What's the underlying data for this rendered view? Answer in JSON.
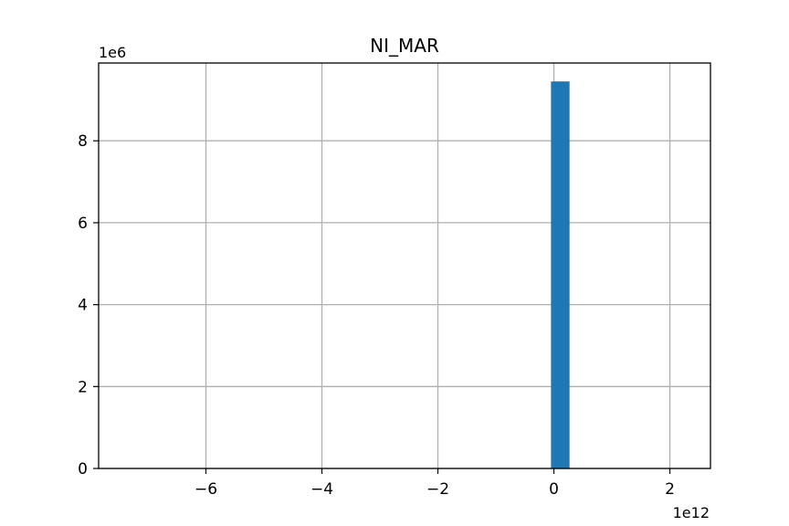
{
  "chart_data": {
    "type": "bar",
    "title": "NI_MAR",
    "xlabel": "",
    "ylabel": "",
    "x_offset_label": "1e12",
    "y_offset_label": "1e6",
    "xlim": [
      -7.85,
      2.7
    ],
    "ylim": [
      0,
      9.9
    ],
    "grid": true,
    "x_ticks": [
      {
        "value": -6,
        "label": "−6"
      },
      {
        "value": -4,
        "label": "−4"
      },
      {
        "value": -2,
        "label": "−2"
      },
      {
        "value": 0,
        "label": "0"
      },
      {
        "value": 2,
        "label": "2"
      }
    ],
    "y_ticks": [
      {
        "value": 0,
        "label": "0"
      },
      {
        "value": 2,
        "label": "2"
      },
      {
        "value": 4,
        "label": "4"
      },
      {
        "value": 6,
        "label": "6"
      },
      {
        "value": 8,
        "label": "8"
      }
    ],
    "bars": [
      {
        "x0": -0.05,
        "x1": 0.0,
        "value": 9.45
      },
      {
        "x0": 0.0,
        "x1": 0.27,
        "value": 9.45
      }
    ],
    "colors": {
      "bar": "#1f77b4",
      "grid": "#b0b0b0",
      "axis": "#000000"
    }
  }
}
